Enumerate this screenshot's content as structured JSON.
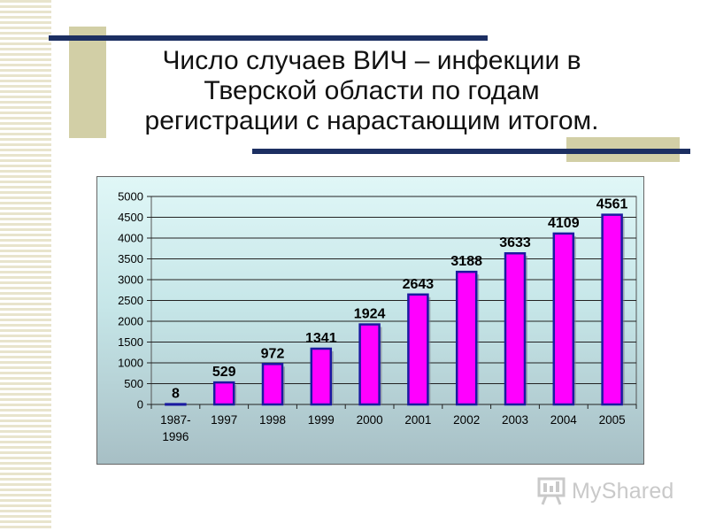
{
  "slide": {
    "title": "Число случаев ВИЧ – инфекции в Тверской области по годам регистрации с нарастающим итогом."
  },
  "colors": {
    "bar_fill": "#ff00ff",
    "bar_border": "#1a1aa0",
    "title_lines": "#1c2f62",
    "deco_boxes": "#d2cfa6"
  },
  "logo": {
    "text": "MyShared",
    "icon": "presentation-board-icon"
  },
  "chart_data": {
    "type": "bar",
    "title": "",
    "xlabel": "",
    "ylabel": "",
    "categories": [
      "1987-1996",
      "1997",
      "1998",
      "1999",
      "2000",
      "2001",
      "2002",
      "2003",
      "2004",
      "2005"
    ],
    "category_lines": [
      [
        "1987-",
        "1996"
      ],
      [
        "1997"
      ],
      [
        "1998"
      ],
      [
        "1999"
      ],
      [
        "2000"
      ],
      [
        "2001"
      ],
      [
        "2002"
      ],
      [
        "2003"
      ],
      [
        "2004"
      ],
      [
        "2005"
      ]
    ],
    "values": [
      8,
      529,
      972,
      1341,
      1924,
      2643,
      3188,
      3633,
      4109,
      4561
    ],
    "data_labels": [
      "8",
      "529",
      "972",
      "1341",
      "1924",
      "2643",
      "3188",
      "3633",
      "4109",
      "4561"
    ],
    "ylim": [
      0,
      5000
    ],
    "yticks": [
      0,
      500,
      1000,
      1500,
      2000,
      2500,
      3000,
      3500,
      4000,
      4500,
      5000
    ],
    "grid": true,
    "legend": "none"
  }
}
